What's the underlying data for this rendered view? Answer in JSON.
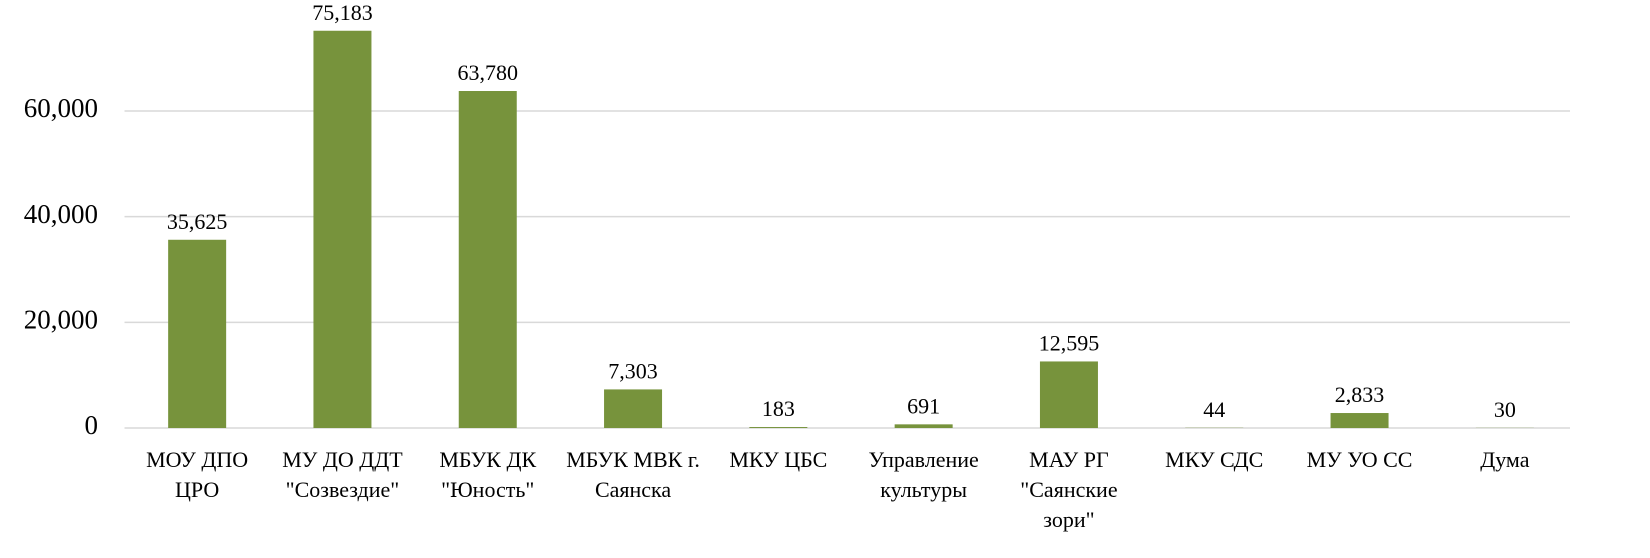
{
  "chart_data": {
    "type": "bar",
    "categories": [
      "МОУ ДПО ЦРО",
      "МУ ДО ДДТ \"Созвездие\"",
      "МБУК ДК \"Юность\"",
      "МБУК МВК г. Саянска",
      "МКУ ЦБС",
      "Управление культуры",
      "МАУ РГ \"Саянские зори\"",
      "МКУ СДС",
      "МУ УО СС",
      "Дума"
    ],
    "values": [
      35625,
      75183,
      63780,
      7303,
      183,
      691,
      12595,
      44,
      2833,
      30
    ],
    "value_labels": [
      "35,625",
      "75,183",
      "63,780",
      "7,303",
      "183",
      "691",
      "12,595",
      "44",
      "2,833",
      "30"
    ],
    "color": "#77933c",
    "ylim": [
      0,
      80000
    ],
    "yticks": [
      0,
      {
        "value": 20000,
        "label": "20,000"
      },
      {
        "value": 40000,
        "label": "40,000"
      },
      {
        "value": 60000,
        "label": "60,000"
      }
    ],
    "grid": true
  }
}
